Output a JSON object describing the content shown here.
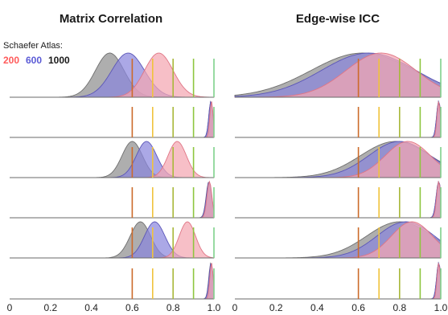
{
  "chart_data": {
    "type": "area",
    "subtype": "ridgeline-density",
    "legend": {
      "title": "Schaefer Atlas:",
      "placement": "top-left",
      "entries": [
        {
          "label": "200",
          "color": "#ff5a5a"
        },
        {
          "label": "600",
          "color": "#5a5ad6"
        },
        {
          "label": "1000",
          "color": "#1a1a1a"
        }
      ]
    },
    "series_colors": {
      "200": {
        "fill": "#f4a6b2",
        "stroke": "#e07585"
      },
      "600": {
        "fill": "#8a86dc",
        "stroke": "#5b56b8"
      },
      "1000": {
        "fill": "#8f8f8f",
        "stroke": "#6e6e6e"
      }
    },
    "reference_lines": [
      {
        "x": 0.6,
        "color": "#cc6a2a"
      },
      {
        "x": 0.7,
        "color": "#f0c33c"
      },
      {
        "x": 0.8,
        "color": "#a8b83a"
      },
      {
        "x": 0.9,
        "color": "#8ec63f"
      },
      {
        "x": 1.0,
        "color": "#7fd08a"
      }
    ],
    "xlim": [
      0,
      1
    ],
    "xticks": [
      "0",
      "0.2",
      "0.4",
      "0.6",
      "0.8",
      "1.0"
    ],
    "panels": [
      {
        "title": "Matrix Correlation",
        "rows": [
          {
            "series": [
              {
                "name": "1000",
                "mean": 0.49,
                "sd": 0.07
              },
              {
                "name": "600",
                "mean": 0.58,
                "sd": 0.08
              },
              {
                "name": "200",
                "mean": 0.73,
                "sd": 0.07
              }
            ]
          },
          {
            "series": [
              {
                "name": "1000",
                "mean": 0.985,
                "sd": 0.01
              },
              {
                "name": "600",
                "mean": 0.985,
                "sd": 0.01
              },
              {
                "name": "200",
                "mean": 0.988,
                "sd": 0.008
              }
            ]
          },
          {
            "series": [
              {
                "name": "1000",
                "mean": 0.6,
                "sd": 0.05
              },
              {
                "name": "600",
                "mean": 0.67,
                "sd": 0.05
              },
              {
                "name": "200",
                "mean": 0.82,
                "sd": 0.045
              }
            ]
          },
          {
            "series": [
              {
                "name": "1000",
                "mean": 0.975,
                "sd": 0.013
              },
              {
                "name": "600",
                "mean": 0.976,
                "sd": 0.013
              },
              {
                "name": "200",
                "mean": 0.978,
                "sd": 0.012
              }
            ]
          },
          {
            "series": [
              {
                "name": "1000",
                "mean": 0.64,
                "sd": 0.05
              },
              {
                "name": "600",
                "mean": 0.71,
                "sd": 0.05
              },
              {
                "name": "200",
                "mean": 0.87,
                "sd": 0.04
              }
            ]
          },
          {
            "series": [
              {
                "name": "1000",
                "mean": 0.985,
                "sd": 0.01
              },
              {
                "name": "600",
                "mean": 0.986,
                "sd": 0.01
              },
              {
                "name": "200",
                "mean": 0.988,
                "sd": 0.008
              }
            ]
          }
        ]
      },
      {
        "title": "Edge-wise ICC",
        "rows": [
          {
            "series": [
              {
                "name": "1000",
                "mean": 0.62,
                "sd": 0.25
              },
              {
                "name": "600",
                "mean": 0.65,
                "sd": 0.23
              },
              {
                "name": "200",
                "mean": 0.71,
                "sd": 0.17
              }
            ]
          },
          {
            "series": [
              {
                "name": "1000",
                "mean": 0.99,
                "sd": 0.01
              },
              {
                "name": "600",
                "mean": 0.99,
                "sd": 0.01
              },
              {
                "name": "200",
                "mean": 0.99,
                "sd": 0.008
              }
            ]
          },
          {
            "series": [
              {
                "name": "1000",
                "mean": 0.78,
                "sd": 0.17
              },
              {
                "name": "600",
                "mean": 0.8,
                "sd": 0.15
              },
              {
                "name": "200",
                "mean": 0.84,
                "sd": 0.11
              }
            ]
          },
          {
            "series": [
              {
                "name": "1000",
                "mean": 0.99,
                "sd": 0.012
              },
              {
                "name": "600",
                "mean": 0.99,
                "sd": 0.012
              },
              {
                "name": "200",
                "mean": 0.99,
                "sd": 0.01
              }
            ]
          },
          {
            "series": [
              {
                "name": "1000",
                "mean": 0.8,
                "sd": 0.16
              },
              {
                "name": "600",
                "mean": 0.83,
                "sd": 0.14
              },
              {
                "name": "200",
                "mean": 0.86,
                "sd": 0.1
              }
            ]
          },
          {
            "series": [
              {
                "name": "1000",
                "mean": 0.99,
                "sd": 0.01
              },
              {
                "name": "600",
                "mean": 0.99,
                "sd": 0.01
              },
              {
                "name": "200",
                "mean": 0.99,
                "sd": 0.008
              }
            ]
          }
        ]
      }
    ]
  }
}
